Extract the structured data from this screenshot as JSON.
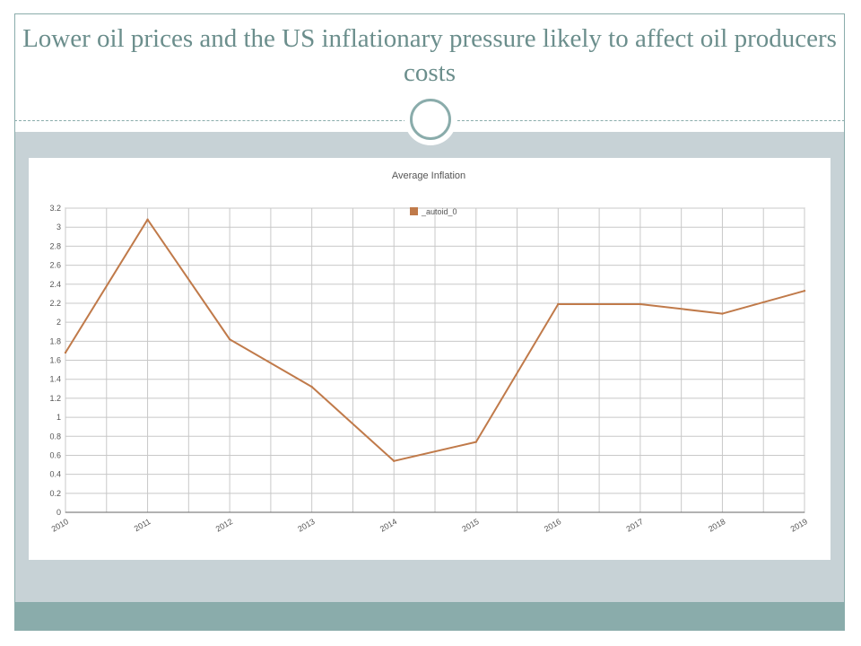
{
  "slide": {
    "title": "Lower oil prices and the US inflationary pressure likely to affect oil producers costs"
  },
  "colors": {
    "accent": "#8aacab",
    "body_band": "#c7d2d6",
    "title_text": "#6b8e8c",
    "series_line": "#c07a4a",
    "grid": "#c8c8c8"
  },
  "chart_data": {
    "type": "line",
    "title": "Average Inflation",
    "xlabel": "",
    "ylabel": "",
    "x": [
      "2010",
      "2011",
      "2012",
      "2013",
      "2014",
      "2015",
      "2016",
      "2017",
      "2018",
      "2019"
    ],
    "series": [
      {
        "name": "_autoid_0",
        "values": [
          1.68,
          3.08,
          1.82,
          1.32,
          0.54,
          0.74,
          2.19,
          2.19,
          2.09,
          2.33
        ]
      }
    ],
    "ylim": [
      0,
      3.2
    ],
    "yticks": [
      "0",
      "0.2",
      "0.4",
      "0.6",
      "0.8",
      "1",
      "1.2",
      "1.4",
      "1.6",
      "1.8",
      "2",
      "2.2",
      "2.4",
      "2.6",
      "2.8",
      "3",
      "3.2"
    ],
    "grid": true,
    "legend": "top-center"
  }
}
